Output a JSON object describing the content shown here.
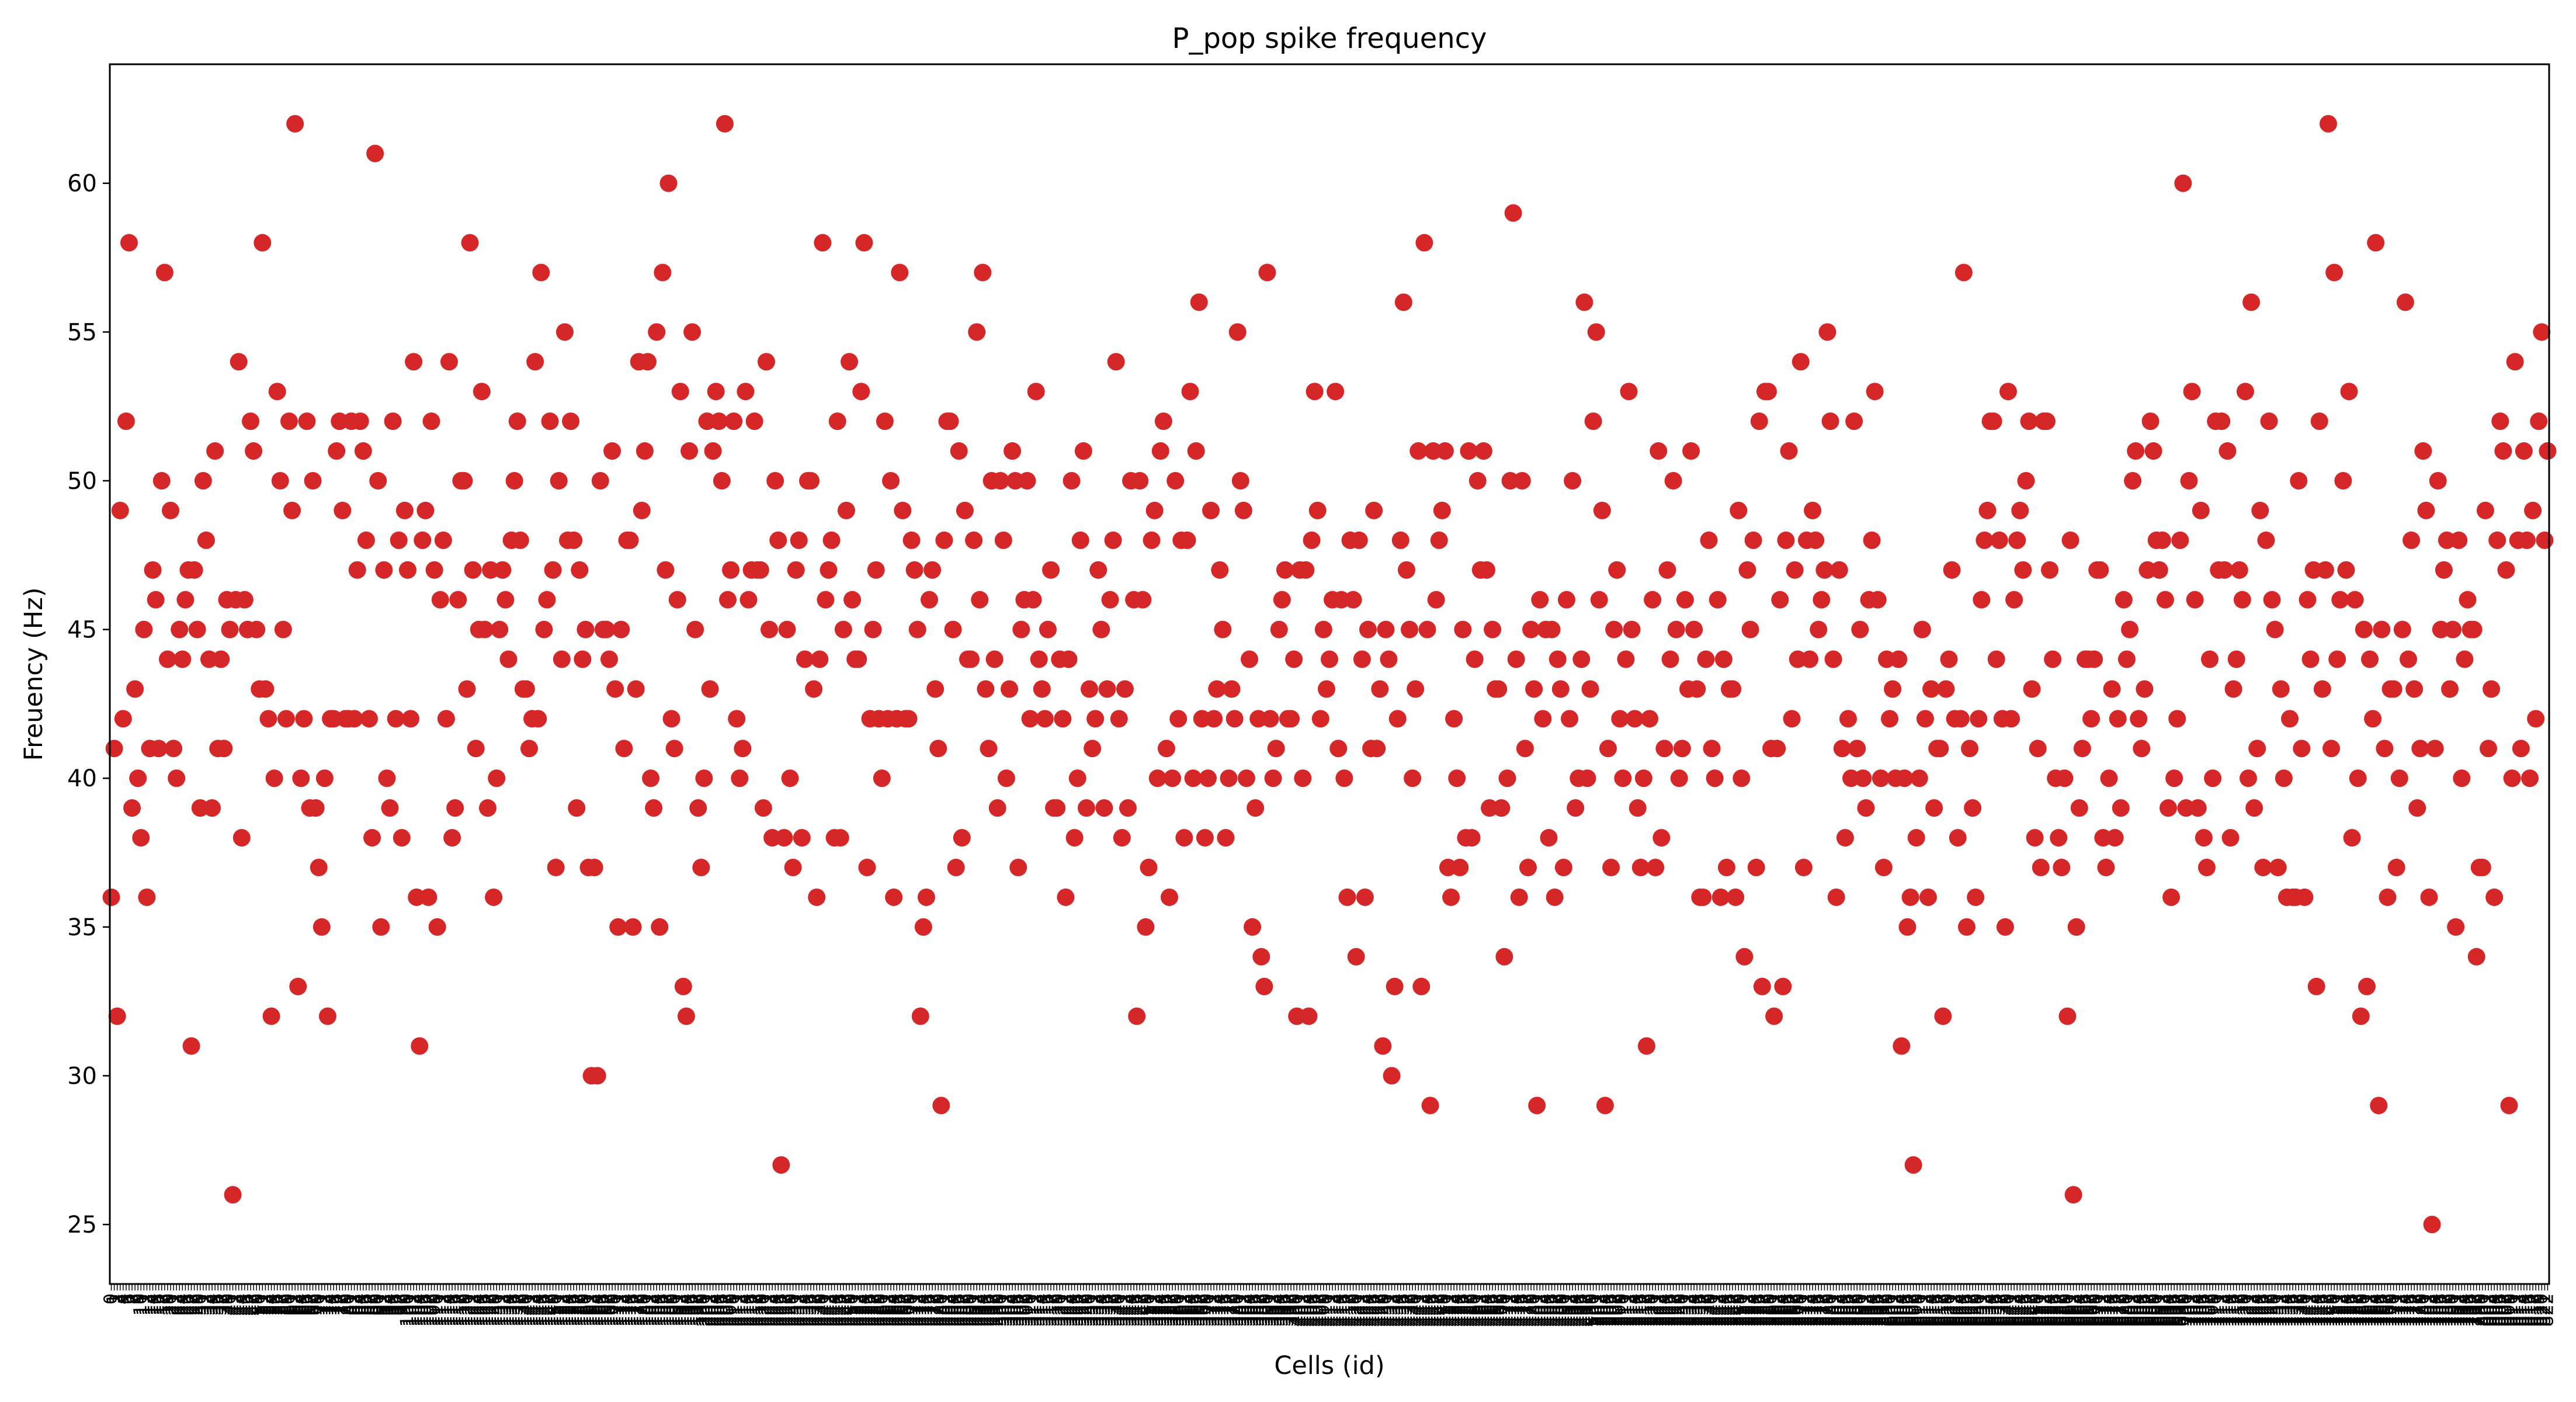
{
  "chart_data": {
    "type": "scatter",
    "title": "P_pop spike frequency",
    "xlabel": "Cells (id)",
    "ylabel": "Freuency (Hz)",
    "ylim": [
      23,
      64
    ],
    "y_ticks": [
      25,
      30,
      35,
      40,
      45,
      50,
      55,
      60
    ],
    "grid": false,
    "legend": "none",
    "marker_color": "#d62728",
    "x_tick_labels": "integer cell ids, one per cell, drawn vertically",
    "series": [
      {
        "values": [
          36,
          41,
          32,
          49,
          42,
          52,
          58,
          39,
          43,
          40,
          38,
          45,
          36,
          41,
          47,
          46,
          41,
          50,
          57,
          44,
          49,
          41,
          40,
          45,
          44,
          46,
          47,
          31,
          47,
          45,
          39,
          50,
          48,
          44,
          39,
          51,
          41,
          44,
          41,
          46,
          45,
          26,
          46,
          54,
          38,
          46,
          45,
          52,
          51,
          45,
          43,
          58,
          43,
          42,
          32,
          40,
          53,
          50,
          45,
          42,
          52,
          49,
          62,
          33,
          40,
          42,
          52,
          39,
          50,
          39,
          37,
          35,
          40,
          32,
          42,
          42,
          51,
          52,
          49,
          42,
          42,
          52,
          42,
          47,
          52,
          51,
          48,
          42,
          38,
          61,
          50,
          35,
          47,
          40,
          39,
          52,
          42,
          48,
          38,
          49,
          47,
          42,
          54,
          36,
          31,
          48,
          49,
          36,
          52,
          47,
          35,
          46,
          48,
          42,
          54,
          38,
          39,
          46,
          50,
          50,
          43,
          58,
          47,
          41,
          45,
          53,
          45,
          39,
          47,
          36,
          40,
          45,
          47,
          46,
          44,
          48,
          50,
          52,
          48,
          43,
          43,
          41,
          42,
          54,
          42,
          57,
          45,
          46,
          52,
          47,
          37,
          50,
          44,
          55,
          48,
          52,
          48,
          39,
          47,
          44,
          45,
          37,
          30,
          37,
          30,
          50,
          45,
          45,
          44,
          51,
          43,
          35,
          45,
          41,
          48,
          48,
          35,
          43,
          54,
          49,
          51,
          54,
          40,
          39,
          55,
          35,
          57,
          47,
          60,
          42,
          41,
          46,
          53,
          33,
          32,
          51,
          55,
          45,
          39,
          37,
          40,
          52,
          43,
          51,
          53,
          52,
          50,
          62,
          46,
          47,
          52,
          42,
          40,
          41,
          53,
          46,
          47,
          52,
          47,
          47,
          39,
          54,
          45,
          38,
          50,
          48,
          27,
          38,
          45,
          40,
          37,
          47,
          48,
          38,
          44,
          50,
          50,
          43,
          36,
          44,
          58,
          46,
          47,
          48,
          38,
          52,
          38,
          45,
          49,
          54,
          46,
          44,
          44,
          53,
          58,
          37,
          42,
          45,
          47,
          42,
          40,
          52,
          42,
          50,
          36,
          42,
          57,
          49,
          42,
          42,
          48,
          47,
          45,
          32,
          35,
          36,
          46,
          47,
          43,
          41,
          29,
          48,
          52,
          52,
          45,
          37,
          51,
          38,
          49,
          44,
          44,
          48,
          55,
          46,
          57,
          43,
          41,
          50,
          44,
          39,
          50,
          48,
          40,
          43,
          51,
          50,
          37,
          45,
          46,
          50,
          42,
          46,
          53,
          44,
          43,
          42,
          45,
          47,
          39,
          39,
          44,
          42,
          36,
          44,
          50,
          38,
          40,
          48,
          51,
          39,
          43,
          41,
          42,
          47,
          45,
          39,
          43,
          46,
          48,
          54,
          42,
          38,
          43,
          39,
          50,
          46,
          32,
          50,
          46,
          35,
          37,
          48,
          49,
          40,
          51,
          52,
          41,
          36,
          40,
          50,
          42,
          48,
          38,
          48,
          53,
          40,
          51,
          56,
          42,
          38,
          40,
          49,
          42,
          43,
          47,
          45,
          38,
          40,
          43,
          42,
          55,
          50,
          49,
          40,
          44,
          35,
          39,
          42,
          34,
          33,
          57,
          42,
          40,
          41,
          45,
          46,
          47,
          42,
          42,
          44,
          32,
          47,
          40,
          47,
          32,
          48,
          53,
          49,
          42,
          45,
          43,
          44,
          46,
          53,
          41,
          46,
          40,
          36,
          48,
          46,
          34,
          48,
          44,
          36,
          45,
          41,
          49,
          41,
          43,
          31,
          45,
          44,
          30,
          33,
          42,
          48,
          56,
          47,
          45,
          40,
          43,
          51,
          33,
          58,
          45,
          29,
          51,
          46,
          48,
          49,
          51,
          37,
          36,
          42,
          40,
          37,
          45,
          38,
          51,
          38,
          44,
          50,
          47,
          51,
          47,
          39,
          45,
          43,
          43,
          39,
          34,
          40,
          50,
          59,
          44,
          36,
          50,
          41,
          37,
          45,
          43,
          29,
          46,
          42,
          45,
          38,
          45,
          36,
          44,
          43,
          37,
          46,
          42,
          50,
          39,
          40,
          44,
          56,
          40,
          43,
          52,
          55,
          46,
          49,
          29,
          41,
          37,
          45,
          47,
          42,
          40,
          44,
          53,
          45,
          42,
          39,
          37,
          40,
          31,
          42,
          46,
          37,
          51,
          38,
          41,
          47,
          44,
          50,
          45,
          40,
          41,
          46,
          43,
          51,
          45,
          43,
          36,
          36,
          44,
          48,
          41,
          40,
          46,
          36,
          44,
          37,
          43,
          43,
          36,
          49,
          40,
          34,
          47,
          45,
          48,
          37,
          52,
          33,
          53,
          53,
          41,
          32,
          41,
          46,
          33,
          48,
          51,
          42,
          47,
          44,
          54,
          37,
          48,
          44,
          49,
          48,
          45,
          46,
          47,
          55,
          52,
          44,
          36,
          47,
          41,
          38,
          42,
          40,
          52,
          41,
          45,
          40,
          39,
          46,
          48,
          53,
          46,
          40,
          37,
          44,
          42,
          43,
          40,
          44,
          31,
          40,
          35,
          36,
          27,
          38,
          40,
          45,
          42,
          36,
          43,
          39,
          41,
          41,
          32,
          43,
          44,
          47,
          42,
          38,
          42,
          57,
          35,
          41,
          39,
          36,
          42,
          46,
          48,
          49,
          52,
          52,
          44,
          48,
          42,
          35,
          53,
          42,
          46,
          48,
          49,
          47,
          50,
          52,
          43,
          38,
          41,
          37,
          52,
          52,
          47,
          44,
          40,
          38,
          37,
          40,
          32,
          48,
          26,
          35,
          39,
          41,
          44,
          44,
          42,
          44,
          47,
          47,
          38,
          37,
          40,
          43,
          38,
          42,
          39,
          46,
          44,
          45,
          50,
          51,
          42,
          41,
          43,
          47,
          52,
          51,
          48,
          47,
          48,
          46,
          39,
          36,
          40,
          42,
          48,
          60,
          39,
          50,
          53,
          46,
          39,
          49,
          38,
          37,
          44,
          40,
          52,
          47,
          52,
          47,
          51,
          38,
          43,
          44,
          47,
          46,
          53,
          40,
          56,
          39,
          41,
          49,
          37,
          48,
          52,
          46,
          45,
          37,
          43,
          40,
          36,
          42,
          36,
          36,
          50,
          41,
          36,
          46,
          44,
          47,
          33,
          52,
          43,
          47,
          62,
          41,
          57,
          44,
          46,
          50,
          47,
          53,
          38,
          46,
          40,
          32,
          45,
          33,
          44,
          42,
          58,
          29,
          45,
          41,
          36,
          43,
          43,
          37,
          40,
          45,
          56,
          44,
          48,
          43,
          39,
          41,
          51,
          49,
          36,
          25,
          41,
          50,
          45,
          47,
          48,
          43,
          45,
          35,
          48,
          40,
          44,
          46,
          45,
          45,
          34,
          37,
          37,
          49,
          41,
          43,
          36,
          48,
          52,
          51,
          47,
          29,
          40,
          54,
          48,
          41,
          51,
          48,
          40,
          49,
          42,
          52,
          55,
          48,
          51
        ]
      }
    ]
  }
}
